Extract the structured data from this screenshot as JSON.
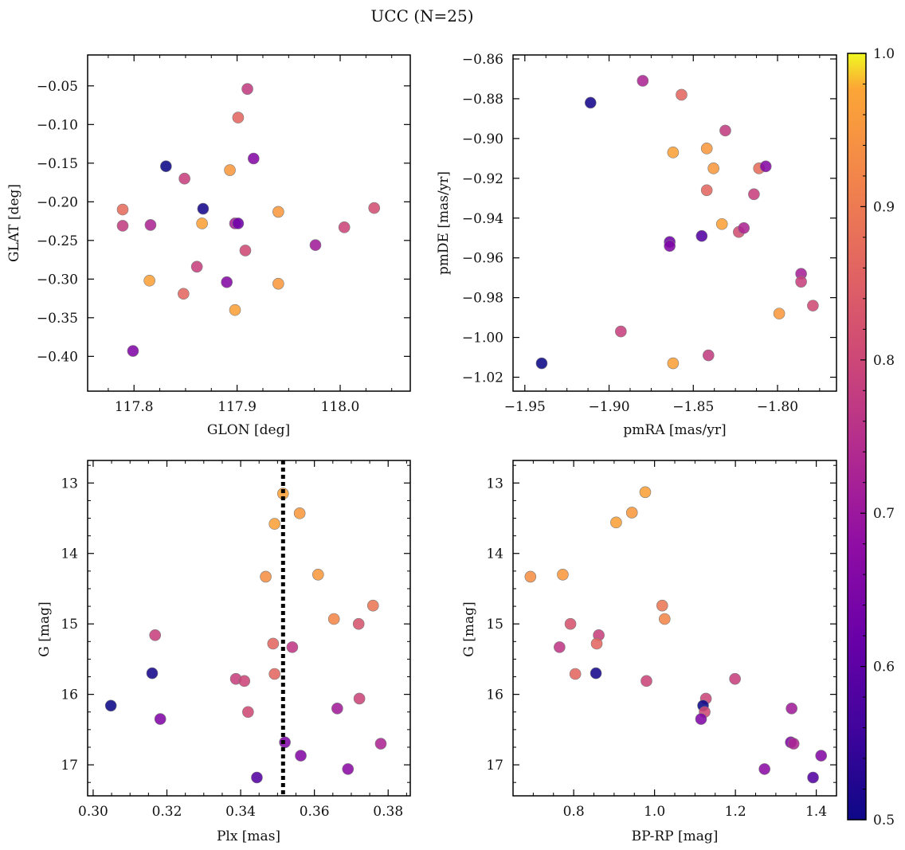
{
  "figure": {
    "title": "UCC (N=25)",
    "colormap": "plasma",
    "marker_edge_color": "#7a7a7a",
    "colorbar": {
      "min": 0.5,
      "max": 1.0,
      "ticks": [
        0.5,
        0.6,
        0.7,
        0.8,
        0.9,
        1.0
      ],
      "tick_labels": [
        "0.5",
        "0.6",
        "0.7",
        "0.8",
        "0.9",
        "1.0"
      ]
    },
    "plx_line_color": "#000000"
  },
  "chart_data": [
    {
      "type": "scatter",
      "xlabel": "GLON [deg]",
      "ylabel": "GLAT [deg]",
      "xlim": [
        117.755,
        118.068
      ],
      "ylim": [
        -0.445,
        -0.01
      ],
      "y_inverted": false,
      "xticks": [
        117.8,
        117.9,
        118.0
      ],
      "xtick_labels": [
        "117.8",
        "117.9",
        "118.0"
      ],
      "yticks": [
        -0.05,
        -0.1,
        -0.15,
        -0.2,
        -0.25,
        -0.3,
        -0.35,
        -0.4
      ],
      "ytick_labels": [
        "−0.05",
        "−0.10",
        "−0.15",
        "−0.20",
        "−0.25",
        "−0.30",
        "−0.35",
        "−0.40"
      ],
      "points": [
        {
          "x": 117.91,
          "y": -0.054,
          "c": 0.79
        },
        {
          "x": 117.901,
          "y": -0.091,
          "c": 0.88
        },
        {
          "x": 117.831,
          "y": -0.154,
          "c": 0.5
        },
        {
          "x": 117.893,
          "y": -0.159,
          "c": 0.96
        },
        {
          "x": 117.916,
          "y": -0.144,
          "c": 0.67
        },
        {
          "x": 117.849,
          "y": -0.17,
          "c": 0.8
        },
        {
          "x": 117.867,
          "y": -0.209,
          "c": 0.51
        },
        {
          "x": 117.789,
          "y": -0.21,
          "c": 0.89
        },
        {
          "x": 117.789,
          "y": -0.231,
          "c": 0.79
        },
        {
          "x": 117.816,
          "y": -0.23,
          "c": 0.74
        },
        {
          "x": 117.866,
          "y": -0.228,
          "c": 0.97
        },
        {
          "x": 117.898,
          "y": -0.228,
          "c": 0.73
        },
        {
          "x": 117.901,
          "y": -0.228,
          "c": 0.63
        },
        {
          "x": 117.94,
          "y": -0.213,
          "c": 0.96
        },
        {
          "x": 118.033,
          "y": -0.208,
          "c": 0.83
        },
        {
          "x": 118.004,
          "y": -0.233,
          "c": 0.81
        },
        {
          "x": 117.908,
          "y": -0.263,
          "c": 0.82
        },
        {
          "x": 117.976,
          "y": -0.256,
          "c": 0.72
        },
        {
          "x": 117.861,
          "y": -0.284,
          "c": 0.8
        },
        {
          "x": 117.815,
          "y": -0.302,
          "c": 0.97
        },
        {
          "x": 117.89,
          "y": -0.304,
          "c": 0.67
        },
        {
          "x": 117.94,
          "y": -0.306,
          "c": 0.96
        },
        {
          "x": 117.848,
          "y": -0.319,
          "c": 0.88
        },
        {
          "x": 117.898,
          "y": -0.34,
          "c": 0.97
        },
        {
          "x": 117.799,
          "y": -0.393,
          "c": 0.66
        }
      ]
    },
    {
      "type": "scatter",
      "xlabel": "pmRA [mas/yr]",
      "ylabel": "pmDE [mas/yr]",
      "xlim": [
        -1.957,
        -1.765
      ],
      "ylim": [
        -1.027,
        -0.858
      ],
      "y_inverted": false,
      "xticks": [
        -1.95,
        -1.9,
        -1.85,
        -1.8
      ],
      "xtick_labels": [
        "−1.95",
        "−1.90",
        "−1.85",
        "−1.80"
      ],
      "yticks": [
        -0.86,
        -0.88,
        -0.9,
        -0.92,
        -0.94,
        -0.96,
        -0.98,
        -1.0,
        -1.02
      ],
      "ytick_labels": [
        "−0.86",
        "−0.88",
        "−0.90",
        "−0.92",
        "−0.94",
        "−0.96",
        "−0.98",
        "−1.00",
        "−1.02"
      ],
      "points": [
        {
          "x": -1.88,
          "y": -0.871,
          "c": 0.74
        },
        {
          "x": -1.911,
          "y": -0.882,
          "c": 0.51
        },
        {
          "x": -1.857,
          "y": -0.878,
          "c": 0.88
        },
        {
          "x": -1.831,
          "y": -0.896,
          "c": 0.79
        },
        {
          "x": -1.862,
          "y": -0.907,
          "c": 0.97
        },
        {
          "x": -1.842,
          "y": -0.905,
          "c": 0.96
        },
        {
          "x": -1.838,
          "y": -0.915,
          "c": 0.96
        },
        {
          "x": -1.811,
          "y": -0.915,
          "c": 0.89
        },
        {
          "x": -1.807,
          "y": -0.914,
          "c": 0.67
        },
        {
          "x": -1.842,
          "y": -0.926,
          "c": 0.88
        },
        {
          "x": -1.814,
          "y": -0.928,
          "c": 0.8
        },
        {
          "x": -1.833,
          "y": -0.943,
          "c": 0.97
        },
        {
          "x": -1.823,
          "y": -0.947,
          "c": 0.83
        },
        {
          "x": -1.82,
          "y": -0.945,
          "c": 0.74
        },
        {
          "x": -1.864,
          "y": -0.952,
          "c": 0.63
        },
        {
          "x": -1.864,
          "y": -0.954,
          "c": 0.66
        },
        {
          "x": -1.845,
          "y": -0.949,
          "c": 0.59
        },
        {
          "x": -1.786,
          "y": -0.968,
          "c": 0.73
        },
        {
          "x": -1.786,
          "y": -0.972,
          "c": 0.8
        },
        {
          "x": -1.779,
          "y": -0.984,
          "c": 0.82
        },
        {
          "x": -1.799,
          "y": -0.988,
          "c": 0.96
        },
        {
          "x": -1.893,
          "y": -0.997,
          "c": 0.8
        },
        {
          "x": -1.841,
          "y": -1.009,
          "c": 0.79
        },
        {
          "x": -1.862,
          "y": -1.013,
          "c": 0.97
        },
        {
          "x": -1.94,
          "y": -1.013,
          "c": 0.5
        }
      ]
    },
    {
      "type": "scatter",
      "xlabel": "Plx [mas]",
      "ylabel": "G [mag]",
      "xlim": [
        0.2985,
        0.386
      ],
      "ylim": [
        17.44,
        12.68
      ],
      "y_inverted": true,
      "xticks": [
        0.3,
        0.32,
        0.34,
        0.36,
        0.38
      ],
      "xtick_labels": [
        "0.30",
        "0.32",
        "0.34",
        "0.36",
        "0.38"
      ],
      "yticks": [
        13,
        14,
        15,
        16,
        17
      ],
      "ytick_labels": [
        "13",
        "14",
        "15",
        "16",
        "17"
      ],
      "vline": {
        "x": 0.3515,
        "style": "dotted"
      },
      "points": [
        {
          "x": 0.3515,
          "y": 13.15,
          "c": 0.97
        },
        {
          "x": 0.3492,
          "y": 13.58,
          "c": 0.97
        },
        {
          "x": 0.356,
          "y": 13.43,
          "c": 0.96
        },
        {
          "x": 0.3468,
          "y": 14.33,
          "c": 0.95
        },
        {
          "x": 0.361,
          "y": 14.3,
          "c": 0.96
        },
        {
          "x": 0.3759,
          "y": 14.74,
          "c": 0.91
        },
        {
          "x": 0.3653,
          "y": 14.93,
          "c": 0.94
        },
        {
          "x": 0.372,
          "y": 15.0,
          "c": 0.84
        },
        {
          "x": 0.3168,
          "y": 15.16,
          "c": 0.8
        },
        {
          "x": 0.3488,
          "y": 15.28,
          "c": 0.88
        },
        {
          "x": 0.354,
          "y": 15.33,
          "c": 0.78
        },
        {
          "x": 0.316,
          "y": 15.7,
          "c": 0.51
        },
        {
          "x": 0.3492,
          "y": 15.71,
          "c": 0.88
        },
        {
          "x": 0.3387,
          "y": 15.78,
          "c": 0.8
        },
        {
          "x": 0.341,
          "y": 15.81,
          "c": 0.81
        },
        {
          "x": 0.3048,
          "y": 16.16,
          "c": 0.5
        },
        {
          "x": 0.3662,
          "y": 16.2,
          "c": 0.72
        },
        {
          "x": 0.3722,
          "y": 16.06,
          "c": 0.81
        },
        {
          "x": 0.342,
          "y": 16.25,
          "c": 0.82
        },
        {
          "x": 0.3182,
          "y": 16.35,
          "c": 0.66
        },
        {
          "x": 0.352,
          "y": 16.68,
          "c": 0.66
        },
        {
          "x": 0.378,
          "y": 16.7,
          "c": 0.74
        },
        {
          "x": 0.3563,
          "y": 16.87,
          "c": 0.67
        },
        {
          "x": 0.3691,
          "y": 17.06,
          "c": 0.68
        },
        {
          "x": 0.3444,
          "y": 17.18,
          "c": 0.59
        }
      ]
    },
    {
      "type": "scatter",
      "xlabel": "BP-RP [mag]",
      "ylabel": "G [mag]",
      "xlim": [
        0.65,
        1.45
      ],
      "ylim": [
        17.44,
        12.68
      ],
      "y_inverted": true,
      "xticks": [
        0.8,
        1.0,
        1.2,
        1.4
      ],
      "xtick_labels": [
        "0.8",
        "1.0",
        "1.2",
        "1.4"
      ],
      "yticks": [
        13,
        14,
        15,
        16,
        17
      ],
      "ytick_labels": [
        "13",
        "14",
        "15",
        "16",
        "17"
      ],
      "points": [
        {
          "x": 0.977,
          "y": 13.13,
          "c": 0.97
        },
        {
          "x": 0.944,
          "y": 13.42,
          "c": 0.96
        },
        {
          "x": 0.905,
          "y": 13.56,
          "c": 0.97
        },
        {
          "x": 0.693,
          "y": 14.33,
          "c": 0.95
        },
        {
          "x": 0.773,
          "y": 14.3,
          "c": 0.96
        },
        {
          "x": 1.019,
          "y": 14.74,
          "c": 0.91
        },
        {
          "x": 1.025,
          "y": 14.93,
          "c": 0.94
        },
        {
          "x": 0.792,
          "y": 15.0,
          "c": 0.84
        },
        {
          "x": 0.862,
          "y": 15.16,
          "c": 0.8
        },
        {
          "x": 0.857,
          "y": 15.28,
          "c": 0.88
        },
        {
          "x": 0.765,
          "y": 15.33,
          "c": 0.78
        },
        {
          "x": 0.855,
          "y": 15.7,
          "c": 0.51
        },
        {
          "x": 0.804,
          "y": 15.71,
          "c": 0.88
        },
        {
          "x": 0.98,
          "y": 15.81,
          "c": 0.81
        },
        {
          "x": 1.199,
          "y": 15.78,
          "c": 0.8
        },
        {
          "x": 1.127,
          "y": 16.06,
          "c": 0.81
        },
        {
          "x": 1.12,
          "y": 16.16,
          "c": 0.5
        },
        {
          "x": 1.124,
          "y": 16.25,
          "c": 0.82
        },
        {
          "x": 1.339,
          "y": 16.2,
          "c": 0.72
        },
        {
          "x": 1.115,
          "y": 16.35,
          "c": 0.66
        },
        {
          "x": 1.337,
          "y": 16.68,
          "c": 0.66
        },
        {
          "x": 1.344,
          "y": 16.7,
          "c": 0.74
        },
        {
          "x": 1.412,
          "y": 16.87,
          "c": 0.67
        },
        {
          "x": 1.272,
          "y": 17.06,
          "c": 0.68
        },
        {
          "x": 1.392,
          "y": 17.18,
          "c": 0.59
        }
      ]
    }
  ]
}
